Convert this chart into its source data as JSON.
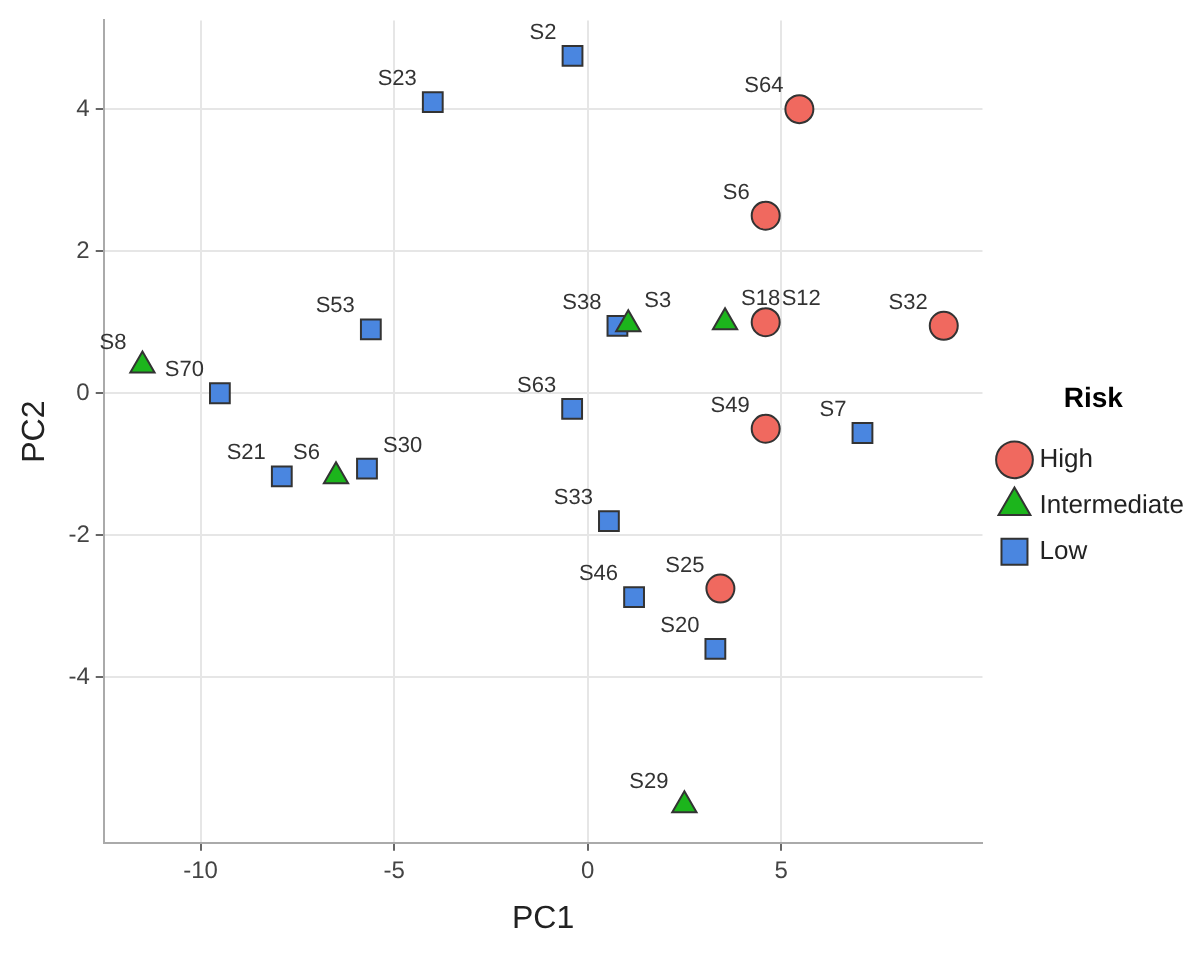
{
  "chart_data": {
    "type": "scatter",
    "xlabel": "PC1",
    "ylabel": "PC2",
    "legend_title": "Risk",
    "xlim": [
      -12.5,
      10.2
    ],
    "ylim": [
      -6.33,
      5.25
    ],
    "xticks": [
      -10,
      -5,
      0,
      5
    ],
    "yticks": [
      -4,
      -2,
      0,
      2,
      4
    ],
    "grid": true,
    "legend": "right",
    "series": [
      {
        "name": "High",
        "color": "#f0695f",
        "marker": "circle",
        "x": [
          5.47,
          4.6,
          4.6,
          9.2,
          4.6,
          3.43
        ],
        "values": [
          4.0,
          2.5,
          1.0,
          0.95,
          -0.5,
          -2.75
        ]
      },
      {
        "name": "Intermediate",
        "color": "#1cb51c",
        "marker": "triangle",
        "x": [
          -11.5,
          1.05,
          3.55,
          -6.5,
          2.5
        ],
        "values": [
          0.39,
          0.97,
          1.0,
          -1.17,
          -5.8
        ]
      },
      {
        "name": "Low",
        "color": "#4a86e0",
        "marker": "square",
        "x": [
          -0.39,
          -4.0,
          -5.6,
          -9.5,
          -0.4,
          0.77,
          7.1,
          -7.9,
          -5.7,
          0.55,
          1.2,
          3.3
        ],
        "values": [
          4.75,
          4.1,
          0.9,
          0,
          -0.22,
          0.95,
          -0.56,
          -1.17,
          -1.06,
          -1.8,
          -2.87,
          -3.6
        ]
      }
    ],
    "annotations": [
      {
        "text": "S2",
        "x": -0.39,
        "y": 4.75
      },
      {
        "text": "S23",
        "x": -4.0,
        "y": 4.1
      },
      {
        "text": "S53",
        "x": -5.6,
        "y": 0.9
      },
      {
        "text": "S8",
        "x": -11.5,
        "y": 0.39
      },
      {
        "text": "S70",
        "x": -9.5,
        "y": 0
      },
      {
        "text": "S63",
        "x": -0.4,
        "y": -0.22
      },
      {
        "text": "S38",
        "x": 0.77,
        "y": 0.95
      },
      {
        "text": "S3",
        "x": 1.05,
        "y": 0.97
      },
      {
        "text": "S64",
        "x": 5.47,
        "y": 4.0
      },
      {
        "text": "S6",
        "x": 4.6,
        "y": 2.5
      },
      {
        "text": "S18",
        "x": 3.55,
        "y": 1.0
      },
      {
        "text": "S12",
        "x": 4.6,
        "y": 1.0
      },
      {
        "text": "S32",
        "x": 9.2,
        "y": 0.95
      },
      {
        "text": "S49",
        "x": 4.6,
        "y": -0.5
      },
      {
        "text": "S7",
        "x": 7.1,
        "y": -0.56
      },
      {
        "text": "S21",
        "x": -7.9,
        "y": -1.17
      },
      {
        "text": "S6",
        "x": -6.5,
        "y": -1.17
      },
      {
        "text": "S30",
        "x": -5.7,
        "y": -1.06
      },
      {
        "text": "S33",
        "x": 0.55,
        "y": -1.8
      },
      {
        "text": "S46",
        "x": 1.2,
        "y": -2.87
      },
      {
        "text": "S25",
        "x": 3.43,
        "y": -2.75
      },
      {
        "text": "S20",
        "x": 3.3,
        "y": -3.6
      },
      {
        "text": "S29",
        "x": 2.5,
        "y": -5.8
      }
    ]
  }
}
